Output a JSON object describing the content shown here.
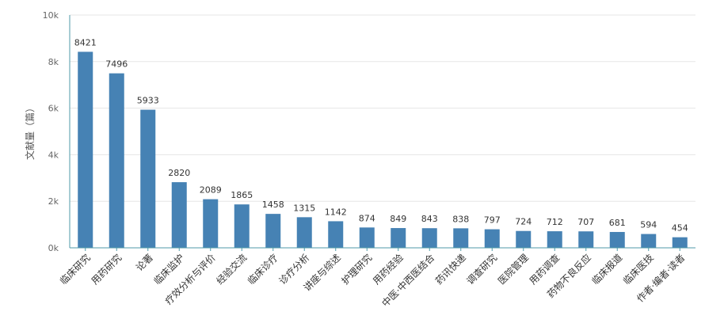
{
  "chart_data": {
    "type": "bar",
    "title": "",
    "xlabel": "",
    "ylabel": "文献量（篇）",
    "ylim": [
      0,
      10000
    ],
    "yticks": [
      0,
      2000,
      4000,
      6000,
      8000,
      10000
    ],
    "ytick_labels": [
      "0k",
      "2k",
      "4k",
      "6k",
      "8k",
      "10k"
    ],
    "grid": true,
    "bar_color": "#4682b4",
    "axis_color": "#4f9aa8",
    "categories": [
      "临床研究",
      "用药研究",
      "论著",
      "临床监护",
      "疗效分析与评价",
      "经验交流",
      "临床诊疗",
      "诊疗分析",
      "讲座与综述",
      "护理研究",
      "用药经验",
      "中医·中西医结合",
      "药讯快递",
      "调查研究",
      "医院管理",
      "用药调查",
      "药物不良反应",
      "临床报道",
      "临床医技",
      "作者·编者·读者"
    ],
    "values": [
      8421,
      7496,
      5933,
      2820,
      2089,
      1865,
      1458,
      1315,
      1142,
      874,
      849,
      843,
      838,
      797,
      724,
      712,
      707,
      681,
      594,
      454
    ]
  }
}
